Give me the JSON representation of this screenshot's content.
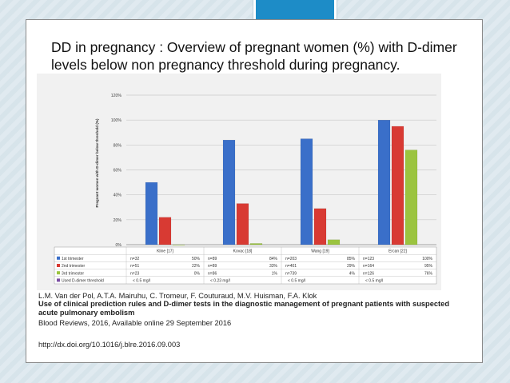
{
  "slide": {
    "title": "DD in pregnancy : Overview of pregnant women (%) with D-dimer levels below non pregnancy threshold during pregnancy.",
    "reference": {
      "authors": "L.M. Van der Pol,  A.T.A. Mairuhu,  C. Tromeur,  F. Couturaud,  M.V. Huisman,  F.A. Klok",
      "article_title": "Use of clinical prediction rules and D-dimer tests in the diagnostic management of pregnant patients with suspected acute pulmonary embolism",
      "journal": "Blood Reviews, 2016, Available online 29 September 2016",
      "doi": "http://dx.doi.org/10.1016/j.blre.2016.09.003"
    }
  },
  "chart_data": {
    "type": "bar",
    "ylabel": "Pregnant women with D-dimer below threshold (%)",
    "ylim": [
      0,
      120
    ],
    "yticks": [
      "0%",
      "20%",
      "40%",
      "60%",
      "80%",
      "100%",
      "120%"
    ],
    "grid": true,
    "categories": [
      "Kline [17]",
      "Kovac [18]",
      "Wang [19]",
      "Ercan [22]"
    ],
    "series": [
      {
        "name": "1st trimester",
        "color": "#3a6fc9",
        "values": [
          50,
          84,
          85,
          100
        ],
        "n": [
          "n=32",
          "n=89",
          "n=203",
          "n=123"
        ],
        "labels": [
          "50%",
          "84%",
          "85%",
          "100%"
        ]
      },
      {
        "name": "2nd trimester",
        "color": "#d83a33",
        "values": [
          22,
          33,
          29,
          95
        ],
        "n": [
          "n=51",
          "n=89",
          "n=401",
          "n=164"
        ],
        "labels": [
          "22%",
          "33%",
          "29%",
          "95%"
        ]
      },
      {
        "name": "3rd trimester",
        "color": "#9bc43f",
        "values": [
          0,
          1,
          4,
          76
        ],
        "n": [
          "n=23",
          "n=86",
          "n=739",
          "n=126"
        ],
        "labels": [
          "0%",
          "1%",
          "4%",
          "76%"
        ]
      }
    ],
    "threshold_row": {
      "name": "Used D-dimer threshold",
      "color": "#7b4ea3",
      "values": [
        "< 0.5 mg/l",
        "< 0.23 mg/l",
        "< 0.5 mg/l",
        "< 0.5 mg/l"
      ]
    }
  }
}
